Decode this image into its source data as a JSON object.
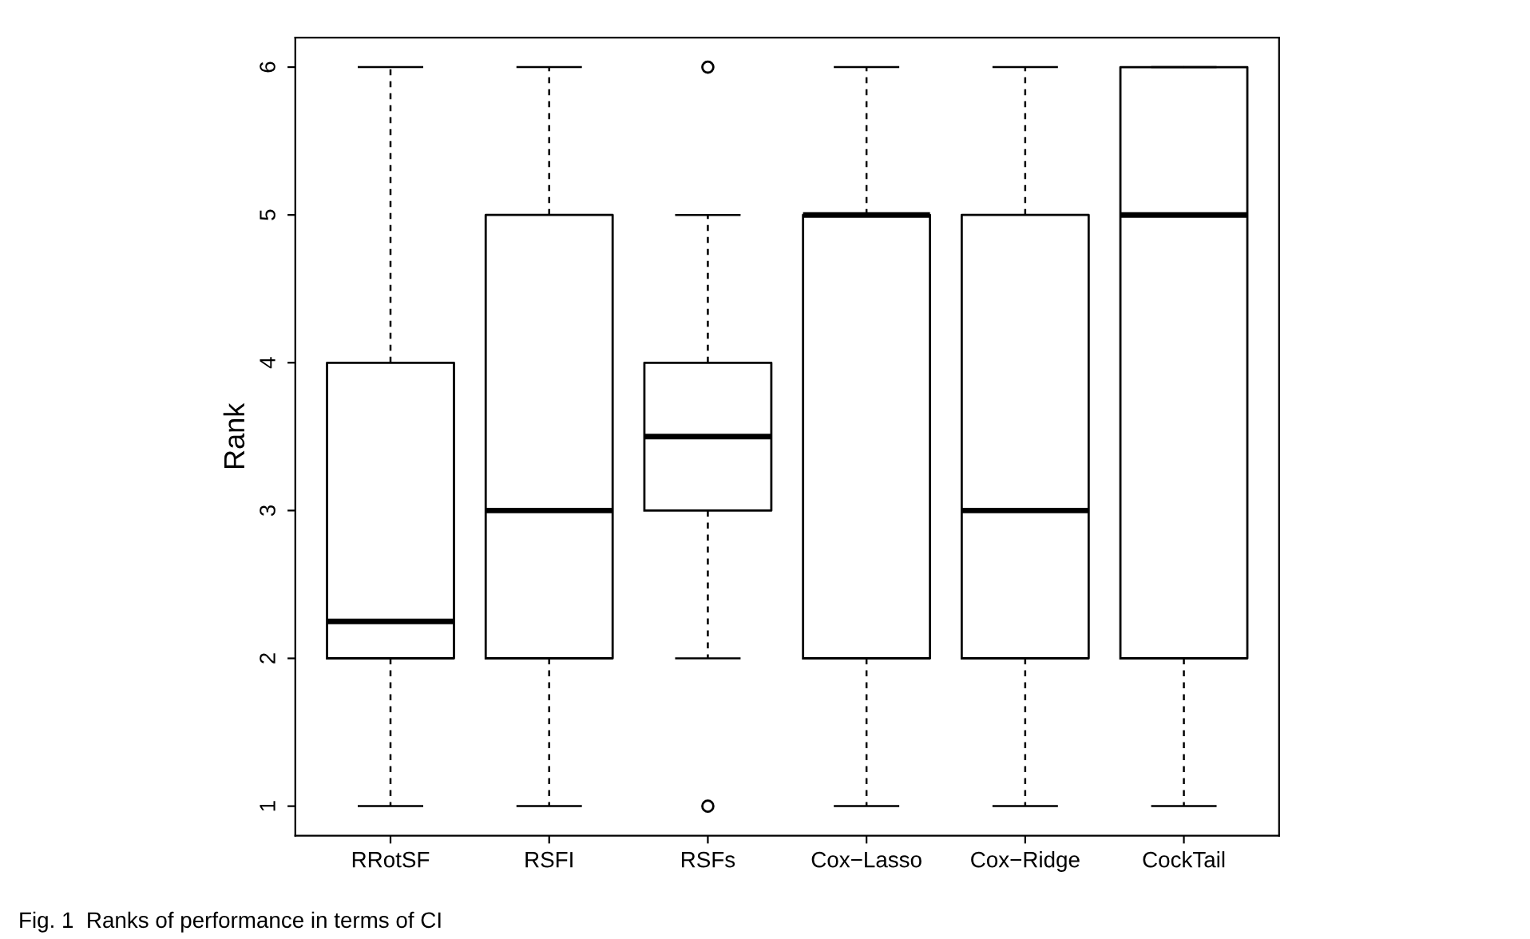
{
  "chart_data": {
    "type": "box",
    "ylabel": "Rank",
    "categories": [
      "RRotSF",
      "RSFI",
      "RSFs",
      "Cox−Lasso",
      "Cox−Ridge",
      "CockTail"
    ],
    "boxes": [
      {
        "low": 1,
        "q1": 2,
        "median": 2.25,
        "q3": 4,
        "high": 6
      },
      {
        "low": 1,
        "q1": 2,
        "median": 3,
        "q3": 5,
        "high": 6
      },
      {
        "low": 2,
        "q1": 3,
        "median": 3.5,
        "q3": 4,
        "high": 5,
        "outliers": [
          6,
          1
        ]
      },
      {
        "low": 1,
        "q1": 2,
        "median": 5,
        "q3": 5,
        "high": 6
      },
      {
        "low": 1,
        "q1": 2,
        "median": 3,
        "q3": 5,
        "high": 6
      },
      {
        "low": 1,
        "q1": 2,
        "median": 5,
        "q3": 6,
        "high": 6
      }
    ],
    "ylim": [
      0.8,
      6.2
    ],
    "yticks": [
      1,
      2,
      3,
      4,
      5,
      6
    ],
    "grid": false,
    "legend": false,
    "annotations": [
      "Fig. 1  Ranks of performance in terms of CI"
    ]
  }
}
